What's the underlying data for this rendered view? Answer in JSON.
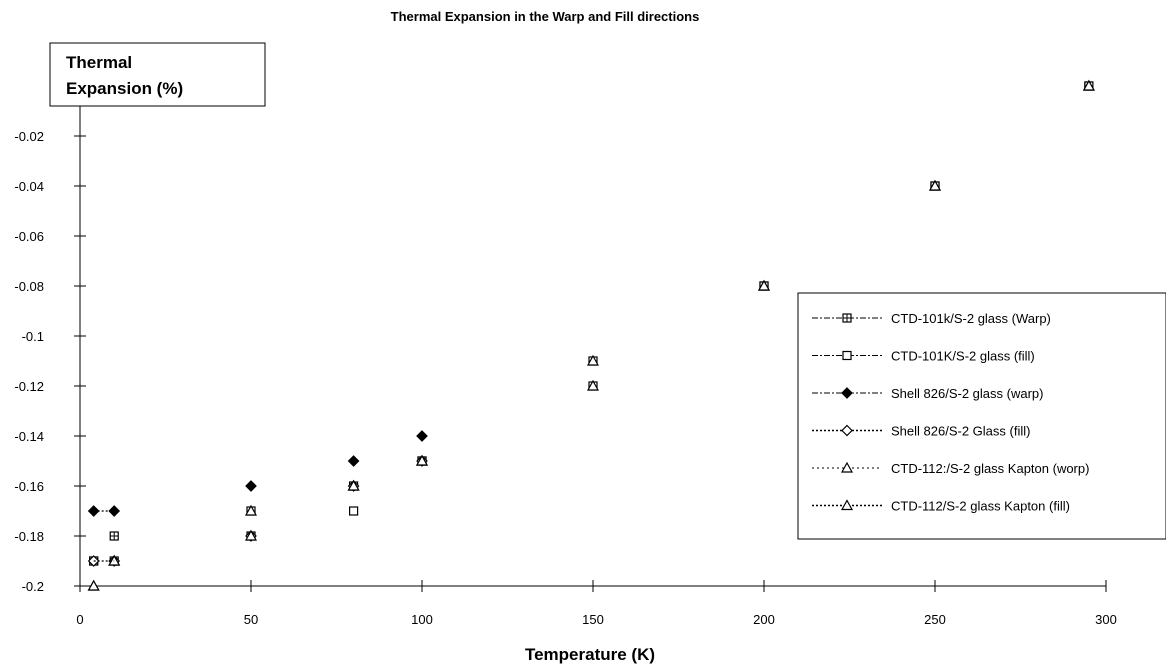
{
  "chart_data": {
    "type": "scatter",
    "title": "Thermal Expansion in the Warp and Fill directions",
    "xlabel": "Temperature (K)",
    "ylabel": "Thermal Expansion (%)",
    "xlim": [
      0,
      300
    ],
    "ylim": [
      -0.2,
      0
    ],
    "xticks": [
      "0",
      "50",
      "100",
      "150",
      "200",
      "250",
      "300"
    ],
    "yticks": [
      "-0.02",
      "-0.04",
      "-0.06",
      "-0.08",
      "-0.1",
      "-0.12",
      "-0.14",
      "-0.16",
      "-0.18",
      "-0.2"
    ],
    "grid": false,
    "legend_position": "right",
    "series": [
      {
        "name": "CTD-101k/S-2 glass (Warp)",
        "marker": "square-plus",
        "x": [
          4,
          10,
          50,
          80,
          100,
          150,
          200,
          250,
          295
        ],
        "y": [
          -0.19,
          -0.18,
          -0.17,
          -0.16,
          -0.15,
          -0.11,
          -0.08,
          -0.04,
          0.0
        ]
      },
      {
        "name": "CTD-101K/S-2 glass (fill)",
        "marker": "square-open",
        "x": [
          4,
          10,
          50,
          80,
          100,
          150,
          200,
          250,
          295
        ],
        "y": [
          -0.19,
          -0.19,
          -0.18,
          -0.17,
          -0.15,
          -0.12,
          -0.08,
          -0.04,
          0.0
        ]
      },
      {
        "name": "Shell 826/S-2 glass (warp)",
        "marker": "diamond-filled",
        "x": [
          4,
          10,
          50,
          80,
          100
        ],
        "y": [
          -0.17,
          -0.17,
          -0.16,
          -0.15,
          -0.14
        ]
      },
      {
        "name": "Shell 826/S-2 Glass (fill)",
        "marker": "diamond-open",
        "x": [
          4,
          10,
          50,
          80,
          100
        ],
        "y": [
          -0.19,
          -0.19,
          -0.18,
          -0.16,
          -0.15
        ]
      },
      {
        "name": "CTD-112:/S-2 glass Kapton (worp)",
        "marker": "triangle-open",
        "x": [
          4,
          10,
          50,
          80,
          100,
          150,
          200,
          250,
          295
        ],
        "y": [
          -0.2,
          -0.19,
          -0.17,
          -0.16,
          -0.15,
          -0.11,
          -0.08,
          -0.04,
          0.0
        ]
      },
      {
        "name": "CTD-112/S-2 glass Kapton (fill)",
        "marker": "triangle-open",
        "x": [
          4,
          10,
          50,
          80,
          100,
          150,
          200,
          250,
          295
        ],
        "y": [
          -0.2,
          -0.19,
          -0.18,
          -0.16,
          -0.15,
          -0.12,
          -0.08,
          -0.04,
          0.0
        ]
      }
    ]
  }
}
